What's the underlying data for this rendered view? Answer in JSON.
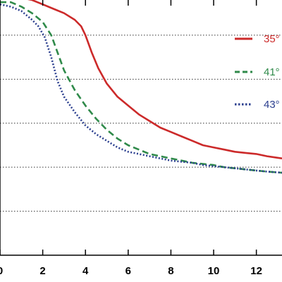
{
  "chart_data": {
    "type": "line",
    "title": "",
    "xlabel": "",
    "ylabel": "",
    "xlim": [
      0,
      13.2
    ],
    "ylim": [
      0,
      1.16
    ],
    "x_ticks": [
      0,
      2,
      4,
      6,
      8,
      10,
      12
    ],
    "x_tick_labels": [
      "0",
      "2",
      "4",
      "6",
      "8",
      "10",
      "12"
    ],
    "gridlines_y": [
      0.2,
      0.4,
      0.6,
      0.8,
      1.0
    ],
    "grid": "horizontal-dotted",
    "legend_position": "top-right",
    "series": [
      {
        "name": "35°",
        "color": "#cc2a2a",
        "style": "solid",
        "x": [
          0,
          0.5,
          1.0,
          1.5,
          2.0,
          2.5,
          3.0,
          3.5,
          3.8,
          4.0,
          4.3,
          4.6,
          5.0,
          5.5,
          6.0,
          6.5,
          7.0,
          7.5,
          8.0,
          8.5,
          9.0,
          9.5,
          10.0,
          10.5,
          11.0,
          11.5,
          12.0,
          12.5,
          13.2
        ],
        "y": [
          1.17,
          1.17,
          1.17,
          1.16,
          1.14,
          1.12,
          1.1,
          1.07,
          1.04,
          1.0,
          0.92,
          0.85,
          0.78,
          0.72,
          0.68,
          0.64,
          0.61,
          0.58,
          0.56,
          0.54,
          0.52,
          0.5,
          0.49,
          0.48,
          0.47,
          0.465,
          0.46,
          0.45,
          0.44
        ]
      },
      {
        "name": "41°",
        "color": "#2f8a4a",
        "style": "dashed",
        "x": [
          0,
          0.5,
          1.0,
          1.5,
          2.0,
          2.4,
          2.7,
          3.0,
          3.5,
          4.0,
          4.5,
          5.0,
          5.5,
          6.0,
          6.5,
          7.0,
          7.5,
          8.0,
          8.5,
          9.0,
          9.5,
          10.0,
          10.5,
          11.0,
          11.5,
          12.0,
          12.5,
          13.2
        ],
        "y": [
          1.15,
          1.15,
          1.13,
          1.1,
          1.06,
          1.0,
          0.92,
          0.84,
          0.75,
          0.68,
          0.62,
          0.57,
          0.53,
          0.5,
          0.48,
          0.46,
          0.45,
          0.44,
          0.43,
          0.42,
          0.415,
          0.41,
          0.4,
          0.395,
          0.39,
          0.385,
          0.38,
          0.375
        ]
      },
      {
        "name": "43°",
        "color": "#2b3f8f",
        "style": "dotted",
        "x": [
          0,
          0.5,
          1.0,
          1.5,
          1.8,
          2.1,
          2.4,
          2.7,
          3.0,
          3.5,
          4.0,
          4.5,
          5.0,
          5.5,
          6.0,
          6.5,
          7.0,
          7.5,
          8.0,
          8.5,
          9.0,
          9.5,
          10.0,
          10.5,
          11.0,
          11.5,
          12.0,
          12.5,
          13.2
        ],
        "y": [
          1.14,
          1.13,
          1.11,
          1.07,
          1.04,
          0.99,
          0.9,
          0.79,
          0.72,
          0.65,
          0.59,
          0.55,
          0.52,
          0.49,
          0.47,
          0.46,
          0.45,
          0.44,
          0.43,
          0.425,
          0.42,
          0.41,
          0.405,
          0.4,
          0.395,
          0.39,
          0.385,
          0.38,
          0.375
        ]
      }
    ]
  }
}
